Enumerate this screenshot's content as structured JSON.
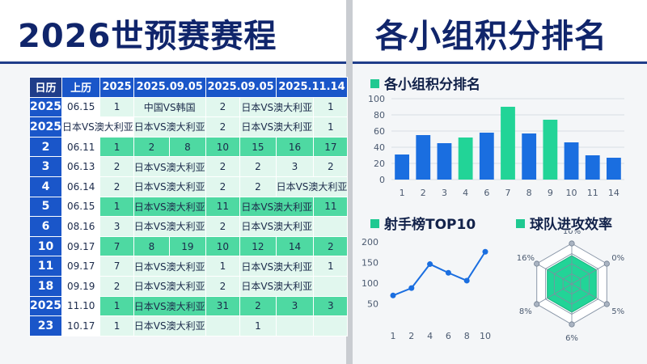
{
  "left": {
    "title": "2026世预赛赛程",
    "table": {
      "headers": [
        "日历",
        "上历",
        "2025",
        "2025.09.05",
        "2025.09.05",
        "2025.11.14"
      ],
      "rows": [
        [
          "2025",
          "06.15",
          "1",
          "中国VS韩国",
          "2",
          "日本VS澳大利亚",
          "1"
        ],
        [
          "2025",
          "日本VS澳大利亚",
          "日本VS澳大利亚",
          "2",
          "日本VS澳大利亚",
          "1"
        ],
        [
          "2",
          "06.11",
          "1",
          "2",
          "8",
          "10",
          "15",
          "16",
          "17"
        ],
        [
          "3",
          "06.13",
          "2",
          "日本VS澳大利亚",
          "2",
          "2",
          "3",
          "2"
        ],
        [
          "4",
          "06.14",
          "2",
          "日本VS澳大利亚",
          "2",
          "2",
          "日本VS澳大利亚"
        ],
        [
          "5",
          "06.15",
          "1",
          "日本VS澳大利亚",
          "11",
          "日本VS澳大利亚",
          "11"
        ],
        [
          "6",
          "08.16",
          "3",
          "日本VS澳大利亚",
          "2",
          "日本VS澳大利亚",
          ""
        ],
        [
          "10",
          "09.17",
          "7",
          "8",
          "19",
          "10",
          "12",
          "14",
          "2"
        ],
        [
          "11",
          "09.17",
          "7",
          "日本VS澳大利亚",
          "1",
          "日本VS澳大利亚",
          "1"
        ],
        [
          "18",
          "09.19",
          "2",
          "日本VS澳大利亚",
          "2",
          "日本VS澳大利亚",
          ""
        ],
        [
          "2025",
          "11.10",
          "1",
          "日本VS澳大利亚",
          "31",
          "2",
          "3",
          "3"
        ],
        [
          "23",
          "10.17",
          "1",
          "日本VS澳大利亚",
          "",
          "1",
          "",
          ""
        ]
      ]
    }
  },
  "right": {
    "title": "各小组积分排名",
    "bar_title": "各小组积分排名",
    "line_title": "射手榜TOP10",
    "radar_title": "球队进攻效率"
  },
  "colors": {
    "navy": "#1f3d8a",
    "blue": "#1a6ee0",
    "green": "#22d497",
    "light_green": "#c4eedd"
  },
  "chart_data": [
    {
      "type": "bar",
      "title": "各小组积分排名",
      "categories": [
        "1",
        "2",
        "3",
        "4",
        "6",
        "7",
        "8",
        "9",
        "10",
        "11",
        "14"
      ],
      "values": [
        31,
        55,
        45,
        52,
        58,
        90,
        57,
        74,
        46,
        30,
        27
      ],
      "highlight": [
        false,
        false,
        false,
        true,
        false,
        true,
        false,
        true,
        false,
        false,
        false
      ],
      "ylim": [
        0,
        100
      ],
      "yticks": [
        0,
        20,
        40,
        60,
        80,
        100
      ],
      "grid": true
    },
    {
      "type": "line",
      "title": "射手榜TOP10",
      "x": [
        "1",
        "2",
        "4",
        "6",
        "8",
        "10"
      ],
      "values": [
        70,
        88,
        146,
        125,
        106,
        176
      ],
      "ylim": [
        0,
        200
      ],
      "yticks": [
        50,
        100,
        150,
        200
      ]
    },
    {
      "type": "radar",
      "title": "球队进攻效率",
      "axes": [
        "10%",
        "0%",
        "5%",
        "6%",
        "8%",
        "16%"
      ],
      "values": [
        0.7,
        0.7,
        0.7,
        0.7,
        0.7,
        0.7
      ],
      "rings": 4
    }
  ]
}
